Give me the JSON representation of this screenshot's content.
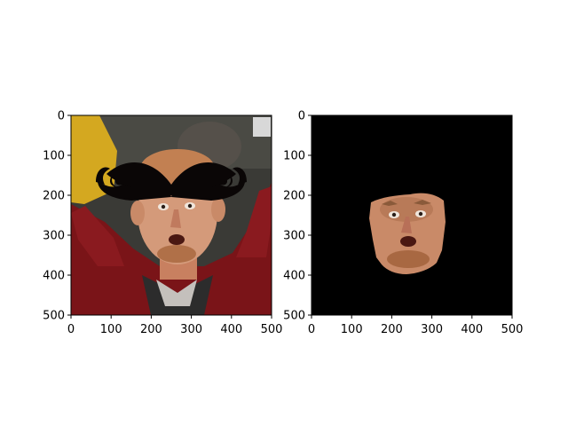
{
  "chart_data": [
    {
      "type": "image",
      "title": "",
      "xlabel": "",
      "ylabel": "",
      "xlim": [
        0,
        500
      ],
      "ylim": [
        500,
        0
      ],
      "xticks": [
        0,
        100,
        200,
        300,
        400,
        500
      ],
      "yticks": [
        0,
        100,
        200,
        300,
        400,
        500
      ],
      "content": "photo-with-mustache-overlay",
      "colors": {
        "background": "#3a3a36",
        "jacket": "#7a1418",
        "skin": "#d49a7a",
        "mustache": "#0a0606"
      }
    },
    {
      "type": "image",
      "title": "",
      "xlabel": "",
      "ylabel": "",
      "xlim": [
        0,
        500
      ],
      "ylim": [
        500,
        0
      ],
      "xticks": [
        0,
        100,
        200,
        300,
        400,
        500
      ],
      "yticks": [
        0,
        100,
        200,
        300,
        400,
        500
      ],
      "content": "segmented-face-on-black",
      "colors": {
        "background": "#000000",
        "skin": "#c98a68"
      }
    }
  ]
}
